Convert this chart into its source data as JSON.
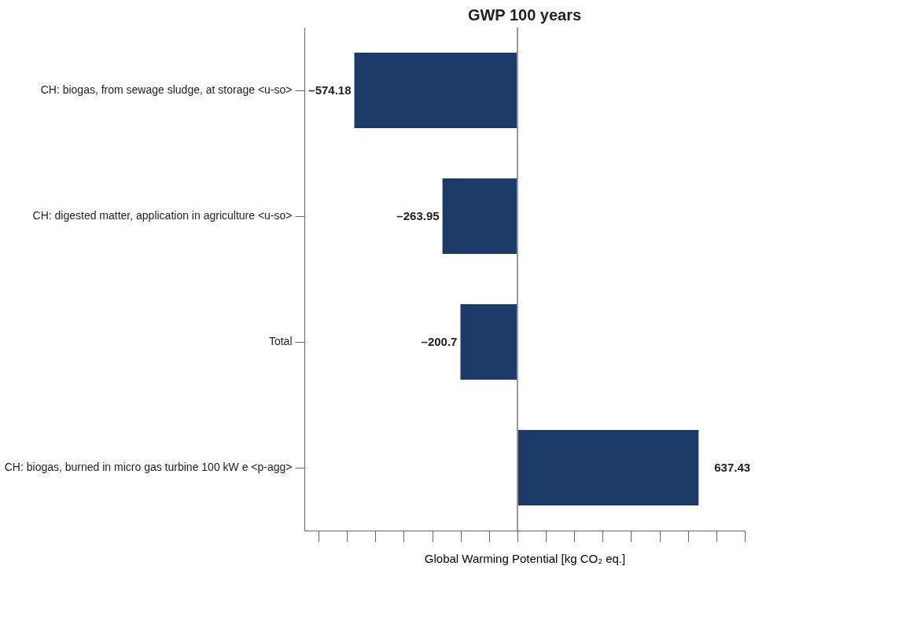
{
  "chart_data": {
    "type": "bar",
    "orientation": "horizontal",
    "title": "GWP 100 years",
    "xlabel": "Global Warming Potential [kg CO₂ eq.]",
    "categories": [
      "CH: biogas, from sewage sludge, at storage <u-so>",
      "CH: digested matter, application in agriculture <u-so>",
      "Total",
      "CH: biogas, burned in micro gas turbine 100 kW e <p-agg>"
    ],
    "values": [
      -574.18,
      -263.95,
      -200.7,
      637.43
    ],
    "value_labels": [
      "–574.18",
      "–263.95",
      "–200.7",
      "637.43"
    ],
    "color": "#1b3a68",
    "xlim": [
      -750,
      800
    ],
    "ref_lines": [
      {
        "axis": "x",
        "value": 0,
        "color": "#999999"
      }
    ],
    "tick_labels": "y",
    "grid": false
  }
}
